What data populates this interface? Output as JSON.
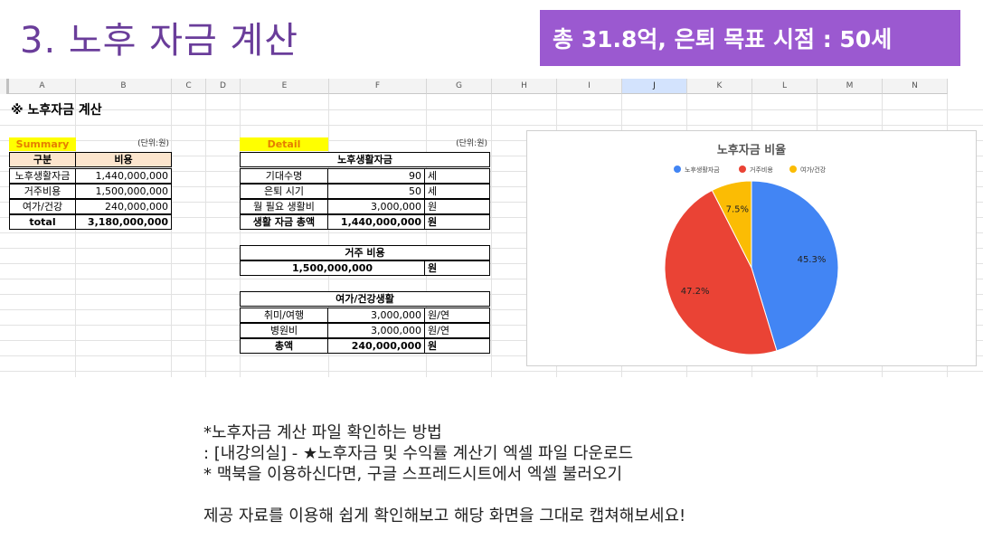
{
  "page": {
    "title": "3. 노후 자금 계산",
    "banner": "총 31.8억, 은퇴 목표 시점  : 50세"
  },
  "sheet": {
    "columns": [
      "A",
      "B",
      "C",
      "D",
      "E",
      "F",
      "G",
      "H",
      "I",
      "J",
      "K",
      "L",
      "M",
      "N"
    ],
    "selected_column": "J",
    "heading": "※ 노후자금 계산",
    "summary": {
      "label": "Summary",
      "unit": "(단위:원)",
      "col1": "구분",
      "col2": "비용",
      "rows": [
        {
          "k": "노후생활자금",
          "v": "1,440,000,000"
        },
        {
          "k": "거주비용",
          "v": "1,500,000,000"
        },
        {
          "k": "여가/건강",
          "v": "240,000,000"
        }
      ],
      "total_label": "total",
      "total_value": "3,180,000,000"
    },
    "detail": {
      "label": "Detail",
      "unit": "(단위:원)",
      "living": {
        "title": "노후생활자금",
        "rows": [
          {
            "k": "기대수명",
            "v": "90",
            "u": "세"
          },
          {
            "k": "은퇴 시기",
            "v": "50",
            "u": "세"
          },
          {
            "k": "월 필요 생활비",
            "v": "3,000,000",
            "u": "원"
          },
          {
            "k": "생활 자금 총액",
            "v": "1,440,000,000",
            "u": "원"
          }
        ]
      },
      "housing": {
        "title": "거주 비용",
        "value": "1,500,000,000",
        "unit": "원"
      },
      "leisure": {
        "title": "여가/건강생활",
        "rows": [
          {
            "k": "취미/여행",
            "v": "3,000,000",
            "u": "원/연"
          },
          {
            "k": "병원비",
            "v": "3,000,000",
            "u": "원/연"
          },
          {
            "k": "총액",
            "v": "240,000,000",
            "u": "원"
          }
        ]
      }
    }
  },
  "chart_data": {
    "type": "pie",
    "title": "노후자금 비율",
    "legend_position": "top",
    "categories": [
      "노후생활자금",
      "거주비용",
      "여가/건강"
    ],
    "values": [
      45.3,
      47.2,
      7.5
    ],
    "labels": [
      "45.3%",
      "47.2%",
      "7.5%"
    ],
    "colors": [
      "#4285f4",
      "#ea4335",
      "#fbbc04"
    ]
  },
  "notes": [
    "*노후자금 계산 파일 확인하는 방법",
    ": [내강의실] - ★노후자금 및 수익률 계산기 엑셀 파일 다운로드",
    "* 맥북을 이용하신다면, 구글 스프레드시트에서 엑셀 불러오기",
    "",
    "제공 자료를 이용해 쉽게 확인해보고 해당 화면을 그대로 캡쳐해보세요!"
  ]
}
